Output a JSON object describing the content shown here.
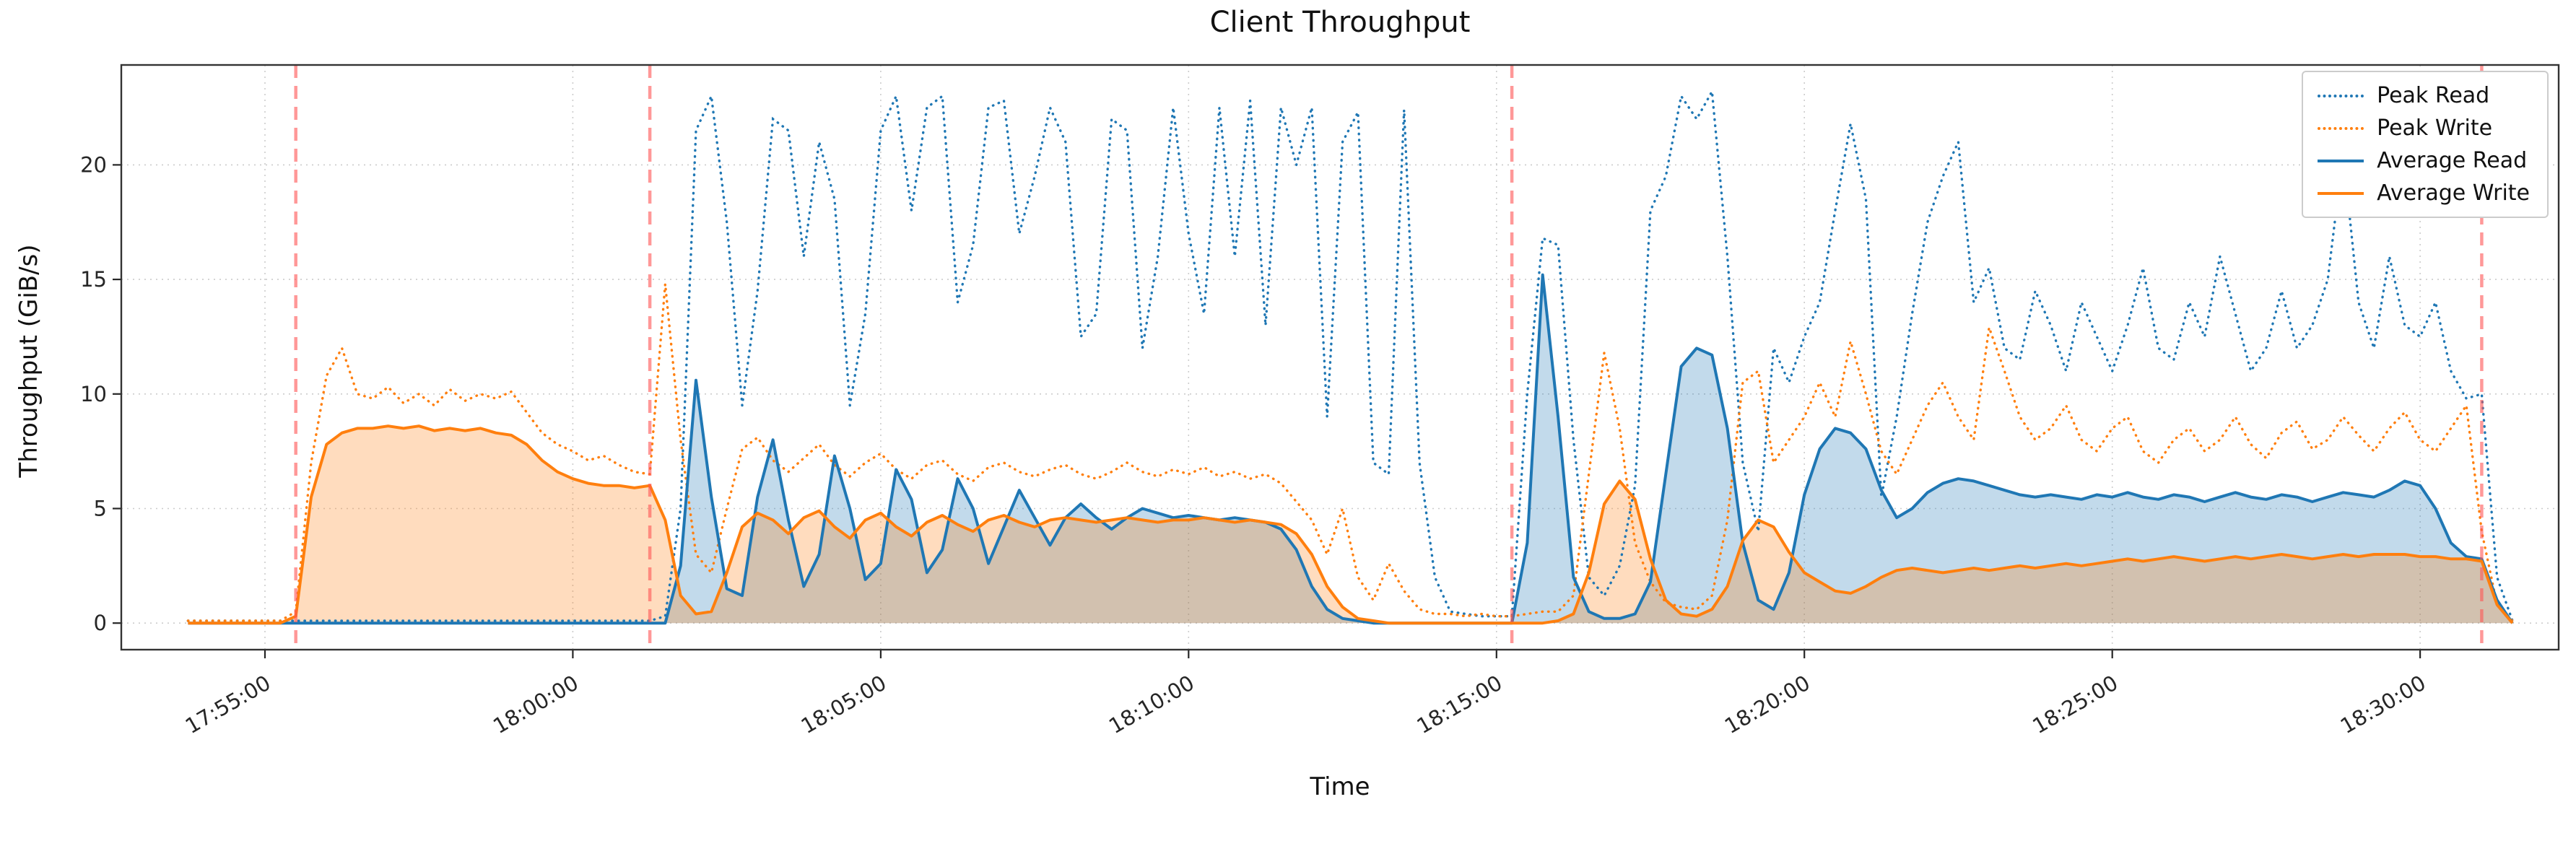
{
  "chart_data": {
    "type": "line",
    "title": "Client Throughput",
    "xlabel": "Time",
    "ylabel": "Throughput (GiB/s)",
    "grid": true,
    "legend_position": "upper right",
    "x_ticks": [
      "17:55:00",
      "18:00:00",
      "18:05:00",
      "18:10:00",
      "18:15:00",
      "18:20:00",
      "18:25:00",
      "18:30:00"
    ],
    "y_ticks": [
      0,
      5,
      10,
      15,
      20
    ],
    "x_range": [
      "17:52:40",
      "18:32:15"
    ],
    "ylim": [
      -1.16,
      24.36
    ],
    "x_start": "17:53:45",
    "x_step_seconds": 15,
    "event_lines": {
      "color": "#ff5555",
      "style": "dashed",
      "times": [
        "17:55:30",
        "18:01:15",
        "18:15:15",
        "18:31:00"
      ]
    },
    "series": [
      {
        "name": "Peak Read",
        "color": "#1f77b4",
        "style": "dotted",
        "fill": false,
        "values": [
          0.1,
          0.1,
          0.1,
          0.1,
          0.1,
          0.1,
          0.1,
          0.1,
          0.1,
          0.1,
          0.1,
          0.1,
          0.1,
          0.1,
          0.1,
          0.1,
          0.1,
          0.1,
          0.1,
          0.1,
          0.1,
          0.1,
          0.1,
          0.1,
          0.1,
          0.1,
          0.1,
          0.1,
          0.1,
          0.1,
          0.1,
          0.3,
          5.0,
          21.5,
          23.0,
          17.5,
          9.5,
          14.5,
          22.0,
          21.5,
          16.0,
          21.0,
          18.5,
          9.5,
          13.5,
          21.5,
          23.0,
          18.0,
          22.5,
          23.0,
          14.0,
          16.5,
          22.5,
          22.8,
          17.0,
          19.5,
          22.5,
          21.0,
          12.5,
          13.5,
          22.0,
          21.5,
          12.0,
          16.0,
          22.5,
          17.0,
          13.5,
          22.5,
          16.0,
          22.8,
          13.0,
          22.5,
          20.0,
          22.5,
          9.0,
          21.0,
          22.3,
          7.0,
          6.5,
          22.4,
          7.0,
          2.0,
          0.5,
          0.4,
          0.3,
          0.3,
          0.3,
          10.0,
          16.8,
          16.5,
          8.0,
          2.0,
          1.2,
          2.5,
          6.0,
          18.0,
          19.5,
          23.0,
          22.0,
          23.2,
          16.0,
          7.0,
          4.0,
          12.0,
          10.5,
          12.5,
          14.0,
          18.0,
          21.8,
          18.5,
          5.5,
          9.0,
          13.5,
          17.5,
          19.5,
          21.0,
          14.0,
          15.5,
          12.0,
          11.5,
          14.5,
          13.0,
          11.0,
          14.0,
          12.5,
          11.0,
          13.0,
          15.5,
          12.0,
          11.5,
          14.0,
          12.5,
          16.0,
          13.5,
          11.0,
          12.0,
          14.5,
          12.0,
          13.0,
          15.0,
          20.5,
          14.0,
          12.0,
          16.0,
          13.0,
          12.5,
          14.0,
          11.0,
          9.8,
          10.0,
          2.0,
          0.1
        ]
      },
      {
        "name": "Peak Write",
        "color": "#ff7f0e",
        "style": "dotted",
        "fill": false,
        "values": [
          0.1,
          0.1,
          0.1,
          0.1,
          0.1,
          0.1,
          0.1,
          0.5,
          7.0,
          10.8,
          12.0,
          10.0,
          9.8,
          10.3,
          9.6,
          10.0,
          9.5,
          10.2,
          9.7,
          10.0,
          9.8,
          10.1,
          9.2,
          8.3,
          7.8,
          7.5,
          7.1,
          7.3,
          6.9,
          6.6,
          6.5,
          14.8,
          8.0,
          3.0,
          2.2,
          5.0,
          7.6,
          8.1,
          7.1,
          6.6,
          7.2,
          7.8,
          6.9,
          6.4,
          7.0,
          7.4,
          6.7,
          6.3,
          6.9,
          7.1,
          6.5,
          6.2,
          6.8,
          7.0,
          6.6,
          6.4,
          6.7,
          6.9,
          6.5,
          6.3,
          6.6,
          7.0,
          6.6,
          6.4,
          6.7,
          6.5,
          6.8,
          6.4,
          6.6,
          6.3,
          6.5,
          6.1,
          5.3,
          4.5,
          3.0,
          5.0,
          2.0,
          1.0,
          2.6,
          1.4,
          0.6,
          0.4,
          0.4,
          0.3,
          0.4,
          0.3,
          0.3,
          0.4,
          0.5,
          0.5,
          1.2,
          6.5,
          11.8,
          8.5,
          3.5,
          1.8,
          0.9,
          0.7,
          0.6,
          1.2,
          4.5,
          10.5,
          11.0,
          7.0,
          8.0,
          9.0,
          10.5,
          9.0,
          12.3,
          10.0,
          7.5,
          6.5,
          8.0,
          9.5,
          10.5,
          9.0,
          8.0,
          12.9,
          11.0,
          9.0,
          8.0,
          8.5,
          9.5,
          8.0,
          7.5,
          8.5,
          9.0,
          7.5,
          7.0,
          8.0,
          8.5,
          7.5,
          8.0,
          9.0,
          7.8,
          7.2,
          8.3,
          8.8,
          7.6,
          8.0,
          9.0,
          8.2,
          7.5,
          8.5,
          9.2,
          8.0,
          7.5,
          8.5,
          9.5,
          4.0,
          0.8,
          0.1
        ]
      },
      {
        "name": "Average Read",
        "color": "#1f77b4",
        "style": "solid",
        "fill": true,
        "values": [
          0,
          0,
          0,
          0,
          0,
          0,
          0,
          0,
          0,
          0,
          0,
          0,
          0,
          0,
          0,
          0,
          0,
          0,
          0,
          0,
          0,
          0,
          0,
          0,
          0,
          0,
          0,
          0,
          0,
          0,
          0,
          0,
          2.5,
          10.6,
          5.5,
          1.5,
          1.2,
          5.5,
          8.0,
          4.5,
          1.6,
          3.0,
          7.3,
          5.0,
          1.9,
          2.6,
          6.7,
          5.4,
          2.2,
          3.2,
          6.3,
          5.0,
          2.6,
          4.2,
          5.8,
          4.6,
          3.4,
          4.6,
          5.2,
          4.6,
          4.1,
          4.6,
          5.0,
          4.8,
          4.6,
          4.7,
          4.6,
          4.5,
          4.6,
          4.5,
          4.4,
          4.1,
          3.2,
          1.6,
          0.6,
          0.2,
          0.1,
          0,
          0,
          0,
          0,
          0,
          0,
          0,
          0,
          0,
          0,
          3.5,
          15.2,
          9.0,
          2.0,
          0.5,
          0.2,
          0.2,
          0.4,
          1.8,
          6.5,
          11.2,
          12.0,
          11.7,
          8.5,
          3.5,
          1.0,
          0.6,
          2.2,
          5.6,
          7.6,
          8.5,
          8.3,
          7.6,
          5.8,
          4.6,
          5.0,
          5.7,
          6.1,
          6.3,
          6.2,
          6.0,
          5.8,
          5.6,
          5.5,
          5.6,
          5.5,
          5.4,
          5.6,
          5.5,
          5.7,
          5.5,
          5.4,
          5.6,
          5.5,
          5.3,
          5.5,
          5.7,
          5.5,
          5.4,
          5.6,
          5.5,
          5.3,
          5.5,
          5.7,
          5.6,
          5.5,
          5.8,
          6.2,
          6.0,
          5.0,
          3.5,
          2.9,
          2.8,
          1.0,
          0
        ]
      },
      {
        "name": "Average Write",
        "color": "#ff7f0e",
        "style": "solid",
        "fill": true,
        "values": [
          0,
          0,
          0,
          0,
          0,
          0,
          0,
          0.3,
          5.5,
          7.8,
          8.3,
          8.5,
          8.5,
          8.6,
          8.5,
          8.6,
          8.4,
          8.5,
          8.4,
          8.5,
          8.3,
          8.2,
          7.8,
          7.1,
          6.6,
          6.3,
          6.1,
          6.0,
          6.0,
          5.9,
          6.0,
          4.5,
          1.2,
          0.4,
          0.5,
          2.2,
          4.2,
          4.8,
          4.5,
          3.9,
          4.6,
          4.9,
          4.2,
          3.7,
          4.5,
          4.8,
          4.2,
          3.8,
          4.4,
          4.7,
          4.3,
          4.0,
          4.5,
          4.7,
          4.4,
          4.2,
          4.5,
          4.6,
          4.5,
          4.4,
          4.5,
          4.6,
          4.5,
          4.4,
          4.5,
          4.5,
          4.6,
          4.5,
          4.4,
          4.5,
          4.4,
          4.3,
          3.9,
          3.0,
          1.6,
          0.7,
          0.2,
          0.1,
          0,
          0,
          0,
          0,
          0,
          0,
          0,
          0,
          0,
          0,
          0,
          0.1,
          0.4,
          2.2,
          5.2,
          6.2,
          5.4,
          2.8,
          1.0,
          0.4,
          0.3,
          0.6,
          1.6,
          3.6,
          4.5,
          4.2,
          3.1,
          2.2,
          1.8,
          1.4,
          1.3,
          1.6,
          2.0,
          2.3,
          2.4,
          2.3,
          2.2,
          2.3,
          2.4,
          2.3,
          2.4,
          2.5,
          2.4,
          2.5,
          2.6,
          2.5,
          2.6,
          2.7,
          2.8,
          2.7,
          2.8,
          2.9,
          2.8,
          2.7,
          2.8,
          2.9,
          2.8,
          2.9,
          3.0,
          2.9,
          2.8,
          2.9,
          3.0,
          2.9,
          3.0,
          3.0,
          3.0,
          2.9,
          2.9,
          2.8,
          2.8,
          2.7,
          0.8,
          0
        ]
      }
    ]
  }
}
